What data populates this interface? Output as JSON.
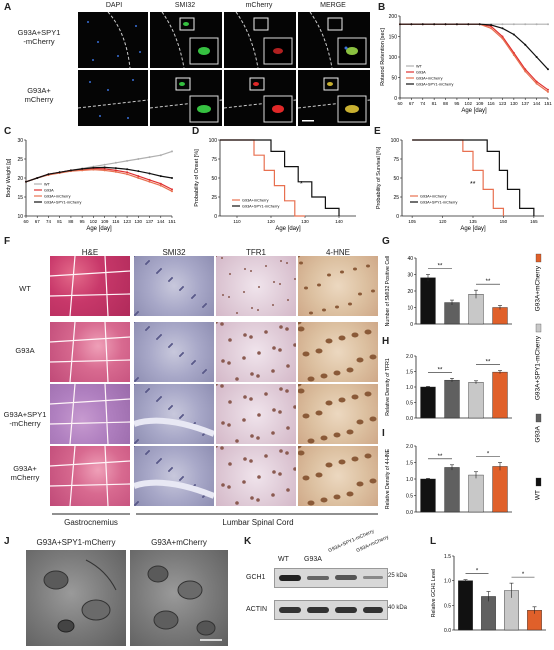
{
  "panels": {
    "A": "A",
    "B": "B",
    "C": "C",
    "D": "D",
    "E": "E",
    "F": "F",
    "G": "G",
    "H": "H",
    "I": "I",
    "J": "J",
    "K": "K",
    "L": "L"
  },
  "panel_a": {
    "columns": [
      "DAPI",
      "SMI32",
      "mCherry",
      "MERGE"
    ],
    "rows": [
      {
        "line1": "G93A+SPY1",
        "line2": "-mCherry"
      },
      {
        "line1": "G93A+",
        "line2": "mCherry"
      }
    ],
    "colors": {
      "dapi": "#3a6fd8",
      "smi32": "#35c040",
      "mcherry": "#e02828"
    }
  },
  "panel_b": {
    "xlabel": "Age [day]",
    "ylabel": "Rotarod Retention [sec]",
    "legend": [
      "WT",
      "G93A",
      "G93A+mCherry",
      "G93A+SPY1-mCherry"
    ],
    "xticks": [
      "60",
      "67",
      "74",
      "81",
      "88",
      "95",
      "102",
      "109",
      "116",
      "123",
      "130",
      "137",
      "144",
      "151"
    ],
    "yticks": [
      "0",
      "50",
      "100",
      "150",
      "200"
    ]
  },
  "panel_c": {
    "xlabel": "Age [day]",
    "ylabel": "Body Weight [g]",
    "legend": [
      "WT",
      "G93A",
      "G93A+mCherry",
      "G93A+SPY1-mCherry"
    ],
    "xticks": [
      "60",
      "67",
      "74",
      "81",
      "88",
      "95",
      "102",
      "109",
      "116",
      "123",
      "130",
      "137",
      "144",
      "151"
    ],
    "yticks": [
      "10",
      "15",
      "20",
      "25",
      "30"
    ]
  },
  "panel_d": {
    "xlabel": "Age [day]",
    "ylabel": "Probability of Onset [%]",
    "legend": [
      "G93A+mCherry",
      "G93A+SPY1-mCherry"
    ],
    "xticks": [
      "110",
      "120",
      "130",
      "140"
    ],
    "yticks": [
      "0",
      "25",
      "50",
      "75",
      "100"
    ],
    "sig": "*"
  },
  "panel_e": {
    "xlabel": "Age [day]",
    "ylabel": "Probability of Survival [%]",
    "legend": [
      "G93A+mCherry",
      "G93A+SPY1-mCherry"
    ],
    "xticks": [
      "105",
      "120",
      "135",
      "150",
      "165"
    ],
    "yticks": [
      "0",
      "25",
      "50",
      "75",
      "100"
    ],
    "sig": "**"
  },
  "panel_f": {
    "columns": [
      "H&E",
      "SMI32",
      "TFR1",
      "4-HNE"
    ],
    "rows": [
      {
        "line1": "WT",
        "line2": ""
      },
      {
        "line1": "G93A",
        "line2": ""
      },
      {
        "line1": "G93A+SPY1",
        "line2": "-mCherry"
      },
      {
        "line1": "G93A+",
        "line2": "mCherry"
      }
    ],
    "bottom_left": "Gastrocnemius",
    "bottom_right": "Lumbar Spinal Cord"
  },
  "panel_g": {
    "ylabel": "Number of SMI32 Positive Cell",
    "yticks": [
      "0",
      "10",
      "20",
      "30",
      "40"
    ],
    "ylim": [
      0,
      40
    ],
    "sig": [
      "**",
      "**"
    ]
  },
  "panel_h": {
    "ylabel": "Relative Density of TFR1",
    "yticks": [
      "0.0",
      "0.5",
      "1.0",
      "1.5",
      "2.0"
    ],
    "ylim": [
      0,
      2
    ],
    "sig": [
      "**",
      "**"
    ]
  },
  "panel_i": {
    "ylabel": "Relative Density of 4-HNE",
    "yticks": [
      "0.0",
      "0.5",
      "1.0",
      "1.5",
      "2.0"
    ],
    "ylim": [
      0,
      2
    ],
    "sig": [
      "**",
      "*"
    ]
  },
  "legend_right": [
    "G93A+mCherry",
    "G93A+SPY1-mCherry",
    "G93A",
    "WT"
  ],
  "legend_colors": {
    "WT": "#111111",
    "G93A": "#606060",
    "G93A+SPY1-mCherry": "#c8c8c8",
    "G93A+mCherry": "#e0602a"
  },
  "panel_j": {
    "labels": [
      "G93A+SPY1-mCherry",
      "G93A+mCherry"
    ]
  },
  "panel_k": {
    "lanes": [
      "WT",
      "G93A",
      "G93A+SPY1-mCherry",
      "G93A+mCherry"
    ],
    "rows": [
      {
        "name": "GCH1",
        "size": "25 kDa"
      },
      {
        "name": "ACTIN",
        "size": "40 kDa"
      }
    ]
  },
  "panel_l": {
    "ylabel": "Relative GCH1 Level",
    "yticks": [
      "0.0",
      "0.5",
      "1.0",
      "1.5"
    ],
    "ylim": [
      0,
      1.5
    ],
    "sig": [
      "*",
      "*"
    ]
  },
  "chart_data": [
    {
      "type": "line",
      "ref": "B",
      "x": [
        60,
        67,
        74,
        81,
        88,
        95,
        102,
        109,
        116,
        123,
        130,
        137,
        144,
        151
      ],
      "series": [
        {
          "name": "WT",
          "values": [
            180,
            180,
            180,
            180,
            180,
            180,
            180,
            180,
            180,
            180,
            180,
            180,
            180,
            180
          ]
        },
        {
          "name": "G93A",
          "values": [
            180,
            180,
            180,
            180,
            180,
            180,
            180,
            180,
            175,
            150,
            110,
            70,
            40,
            20
          ]
        },
        {
          "name": "G93A+mCherry",
          "values": [
            180,
            180,
            180,
            180,
            180,
            180,
            180,
            180,
            170,
            145,
            105,
            65,
            35,
            15
          ]
        },
        {
          "name": "G93A+SPY1-mCherry",
          "values": [
            180,
            180,
            180,
            180,
            180,
            180,
            180,
            180,
            178,
            170,
            155,
            130,
            100,
            70
          ]
        }
      ],
      "ylim": [
        0,
        200
      ]
    },
    {
      "type": "line",
      "ref": "C",
      "x": [
        60,
        67,
        74,
        81,
        88,
        95,
        102,
        109,
        116,
        123,
        130,
        137,
        144,
        151
      ],
      "series": [
        {
          "name": "WT",
          "values": [
            19,
            20,
            21,
            21.5,
            22,
            22.5,
            23,
            23.5,
            24,
            24.5,
            25,
            25.5,
            26,
            27
          ]
        },
        {
          "name": "G93A",
          "values": [
            19,
            20,
            21,
            21.5,
            22,
            22.3,
            22.5,
            22.4,
            22,
            21.5,
            20.5,
            19.5,
            18.5,
            17
          ]
        },
        {
          "name": "G93A+mCherry",
          "values": [
            19,
            20,
            20.8,
            21.3,
            21.8,
            22,
            22.2,
            22,
            21.6,
            21,
            20,
            19,
            18,
            16.5
          ]
        },
        {
          "name": "G93A+SPY1-mCherry",
          "values": [
            19,
            20,
            21,
            21.5,
            22,
            22.4,
            22.7,
            22.8,
            22.6,
            22.3,
            21.8,
            21.2,
            20.5,
            20
          ]
        }
      ],
      "ylim": [
        10,
        30
      ]
    },
    {
      "type": "line",
      "ref": "D",
      "series": [
        {
          "name": "G93A+mCherry",
          "x": [
            105,
            112,
            115,
            118,
            121,
            124,
            127,
            130
          ],
          "values": [
            100,
            100,
            80,
            60,
            40,
            20,
            0,
            0
          ]
        },
        {
          "name": "G93A+SPY1-mCherry",
          "x": [
            105,
            115,
            120,
            124,
            128,
            132,
            136,
            140
          ],
          "values": [
            100,
            100,
            85,
            65,
            45,
            25,
            10,
            0
          ]
        }
      ],
      "ylim": [
        0,
        100
      ]
    },
    {
      "type": "line",
      "ref": "E",
      "series": [
        {
          "name": "G93A+mCherry",
          "x": [
            105,
            125,
            130,
            135,
            140,
            145,
            150
          ],
          "values": [
            100,
            100,
            85,
            60,
            35,
            10,
            0
          ]
        },
        {
          "name": "G93A+SPY1-mCherry",
          "x": [
            105,
            135,
            142,
            148,
            152,
            158,
            165
          ],
          "values": [
            100,
            100,
            85,
            60,
            35,
            10,
            0
          ]
        }
      ],
      "ylim": [
        0,
        100
      ]
    },
    {
      "type": "bar",
      "ref": "G",
      "categories": [
        "WT",
        "G93A",
        "G93A+SPY1-mCherry",
        "G93A+mCherry"
      ],
      "values": [
        28,
        13,
        18,
        10
      ],
      "errors": [
        2,
        1.5,
        2.5,
        1.2
      ],
      "ylim": [
        0,
        40
      ]
    },
    {
      "type": "bar",
      "ref": "H",
      "categories": [
        "WT",
        "G93A",
        "G93A+SPY1-mCherry",
        "G93A+mCherry"
      ],
      "values": [
        1.0,
        1.22,
        1.15,
        1.48
      ],
      "errors": [
        0.02,
        0.06,
        0.05,
        0.05
      ],
      "ylim": [
        0,
        2
      ]
    },
    {
      "type": "bar",
      "ref": "I",
      "categories": [
        "WT",
        "G93A",
        "G93A+SPY1-mCherry",
        "G93A+mCherry"
      ],
      "values": [
        1.0,
        1.35,
        1.12,
        1.38
      ],
      "errors": [
        0.02,
        0.08,
        0.1,
        0.12
      ],
      "ylim": [
        0,
        2
      ]
    },
    {
      "type": "bar",
      "ref": "L",
      "categories": [
        "WT",
        "G93A",
        "G93A+SPY1-mCherry",
        "G93A+mCherry"
      ],
      "values": [
        1.0,
        0.68,
        0.8,
        0.4
      ],
      "errors": [
        0.02,
        0.1,
        0.15,
        0.07
      ],
      "ylim": [
        0,
        1.5
      ]
    }
  ]
}
